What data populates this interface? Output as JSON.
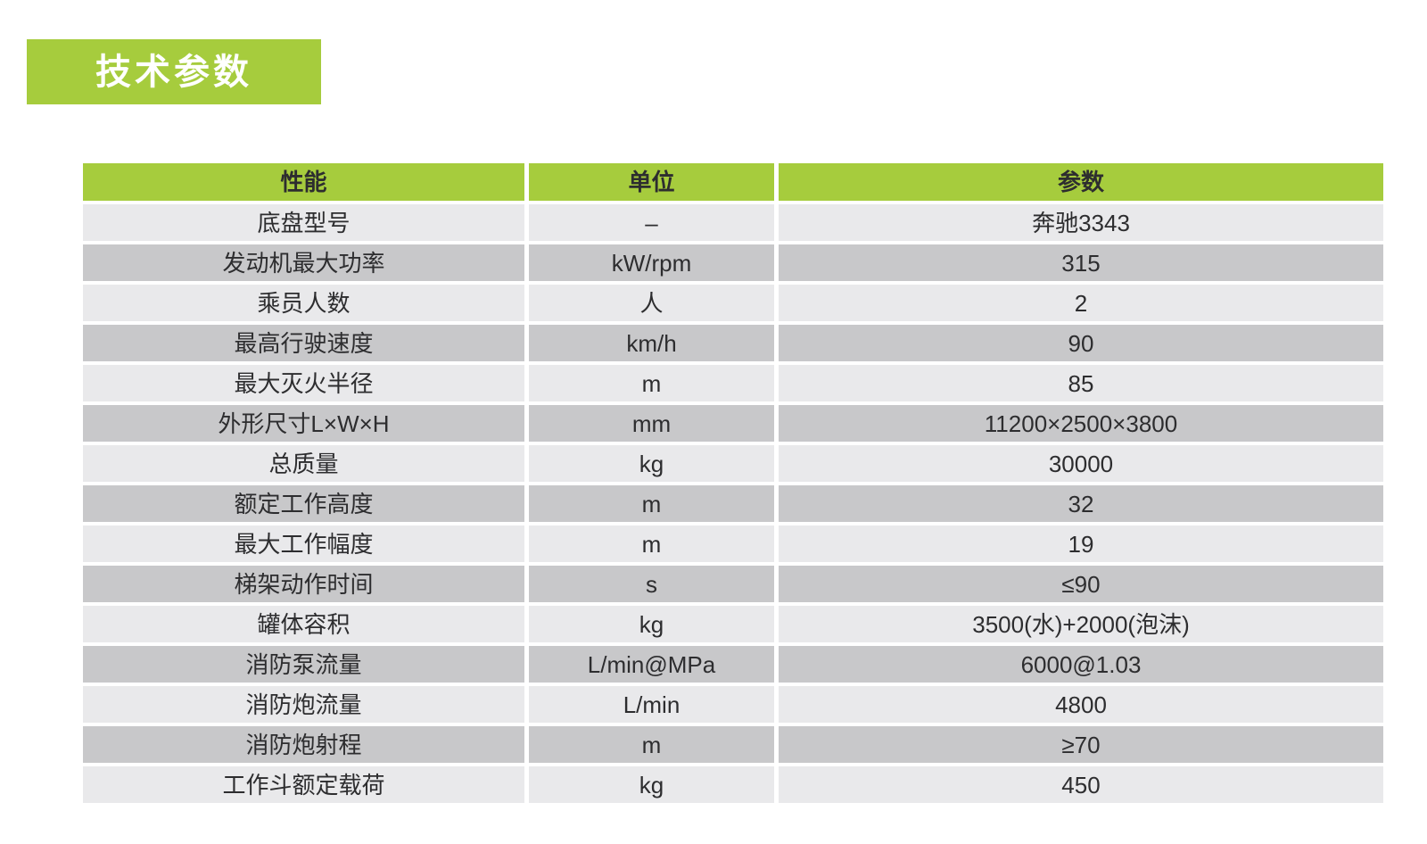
{
  "title": {
    "label": "技术参数"
  },
  "colors": {
    "accent_green": "#a6cc3d",
    "row_light": "#e9e9eb",
    "row_dark": "#c8c8ca",
    "text_dark": "#2d2d2f",
    "title_text": "#ffffff",
    "page_background": "#ffffff"
  },
  "table": {
    "headers": [
      "性能",
      "单位",
      "参数"
    ],
    "rows": [
      {
        "property": "底盘型号",
        "unit": "–",
        "value": "奔驰3343"
      },
      {
        "property": "发动机最大功率",
        "unit": "kW/rpm",
        "value": "315"
      },
      {
        "property": "乘员人数",
        "unit": "人",
        "value": "2"
      },
      {
        "property": "最高行驶速度",
        "unit": "km/h",
        "value": "90"
      },
      {
        "property": "最大灭火半径",
        "unit": "m",
        "value": "85"
      },
      {
        "property": "外形尺寸L×W×H",
        "unit": "mm",
        "value": "11200×2500×3800"
      },
      {
        "property": "总质量",
        "unit": "kg",
        "value": "30000"
      },
      {
        "property": "额定工作高度",
        "unit": "m",
        "value": "32"
      },
      {
        "property": "最大工作幅度",
        "unit": "m",
        "value": "19"
      },
      {
        "property": "梯架动作时间",
        "unit": "s",
        "value": "≤90"
      },
      {
        "property": "罐体容积",
        "unit": "kg",
        "value": "3500(水)+2000(泡沫)"
      },
      {
        "property": "消防泵流量",
        "unit": "L/min@MPa",
        "value": "6000@1.03"
      },
      {
        "property": "消防炮流量",
        "unit": "L/min",
        "value": "4800"
      },
      {
        "property": "消防炮射程",
        "unit": "m",
        "value": "≥70"
      },
      {
        "property": "工作斗额定载荷",
        "unit": "kg",
        "value": "450"
      }
    ]
  }
}
